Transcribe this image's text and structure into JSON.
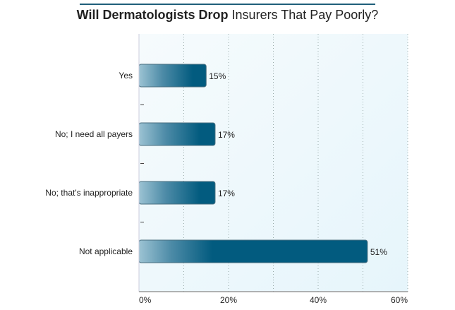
{
  "chart_data": {
    "type": "bar",
    "orientation": "horizontal",
    "title_bold": "Will Dermatologists Drop",
    "title_rest": "Insurers That Pay Poorly?",
    "categories": [
      "Yes",
      "No; I need all payers",
      "No; that's inappropriate",
      "Not applicable"
    ],
    "values": [
      15,
      17,
      17,
      51
    ],
    "data_labels": [
      "15%",
      "17%",
      "17%",
      "51%"
    ],
    "xlim": [
      0,
      60
    ],
    "xticks": [
      0,
      20,
      40,
      60
    ],
    "xtick_labels": [
      "0%",
      "20%",
      "40%",
      "60%"
    ],
    "grid": "vertical dotted every 10%",
    "colors": {
      "bar": "#025b7f",
      "bar_light": "#9cc3d3",
      "background": "#eef8fc",
      "title_rule": "#1f5f7a"
    }
  }
}
